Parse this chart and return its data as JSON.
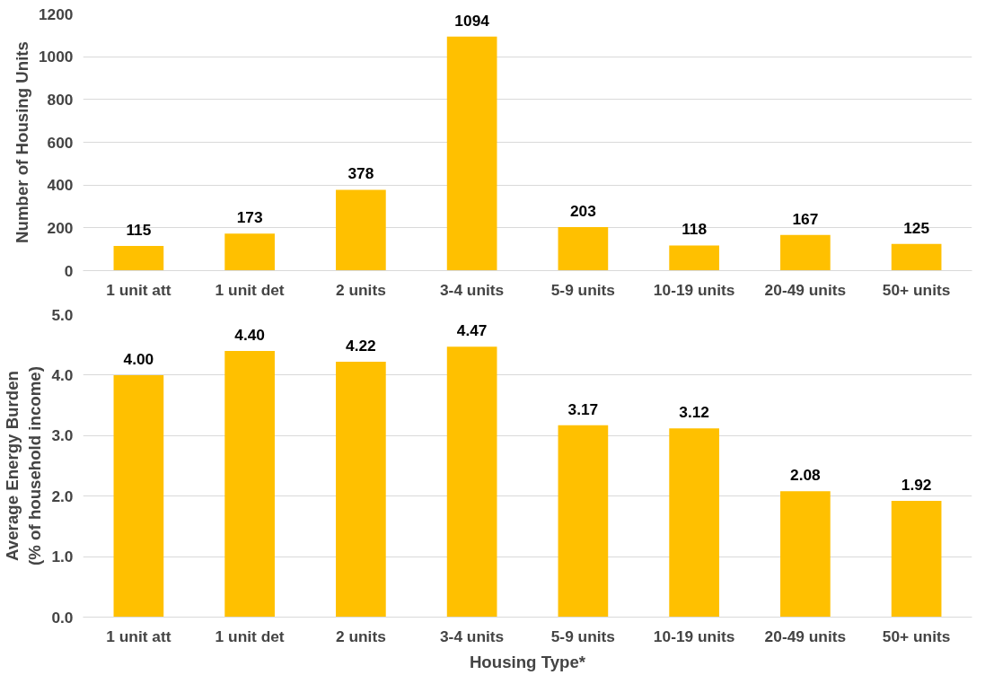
{
  "chart_data": [
    {
      "type": "bar",
      "ylabel": "Number of Housing Units",
      "categories": [
        "1 unit att",
        "1 unit det",
        "2 units",
        "3-4 units",
        "5-9 units",
        "10-19 units",
        "20-49 units",
        "50+ units"
      ],
      "values": [
        115,
        173,
        378,
        1094,
        203,
        118,
        167,
        125
      ],
      "color": "#ffc000",
      "ylim": [
        0,
        1200
      ],
      "yticks": [
        0,
        200,
        400,
        600,
        800,
        1000,
        1200
      ],
      "grid": "y",
      "data_labels": true
    },
    {
      "type": "bar",
      "ylabel": "Average Energy Burden (% of household income)",
      "xlabel": "Housing Type*",
      "categories": [
        "1 unit att",
        "1 unit det",
        "2 units",
        "3-4 units",
        "5-9 units",
        "10-19 units",
        "20-49 units",
        "50+ units"
      ],
      "values": [
        4.0,
        4.4,
        4.22,
        4.47,
        3.17,
        3.12,
        2.08,
        1.92
      ],
      "value_labels": [
        "4.00",
        "4.40",
        "4.22",
        "4.47",
        "3.17",
        "3.12",
        "2.08",
        "1.92"
      ],
      "color": "#ffc000",
      "ylim": [
        0,
        5
      ],
      "yticks": [
        {
          "value": 0,
          "label": "0.0"
        },
        {
          "value": 1,
          "label": "1.0"
        },
        {
          "value": 2,
          "label": "2.0"
        },
        {
          "value": 3,
          "label": "3.0"
        },
        {
          "value": 4,
          "label": "4.0"
        },
        {
          "value": 5,
          "label": "5.0"
        }
      ],
      "grid": "y"
    }
  ]
}
